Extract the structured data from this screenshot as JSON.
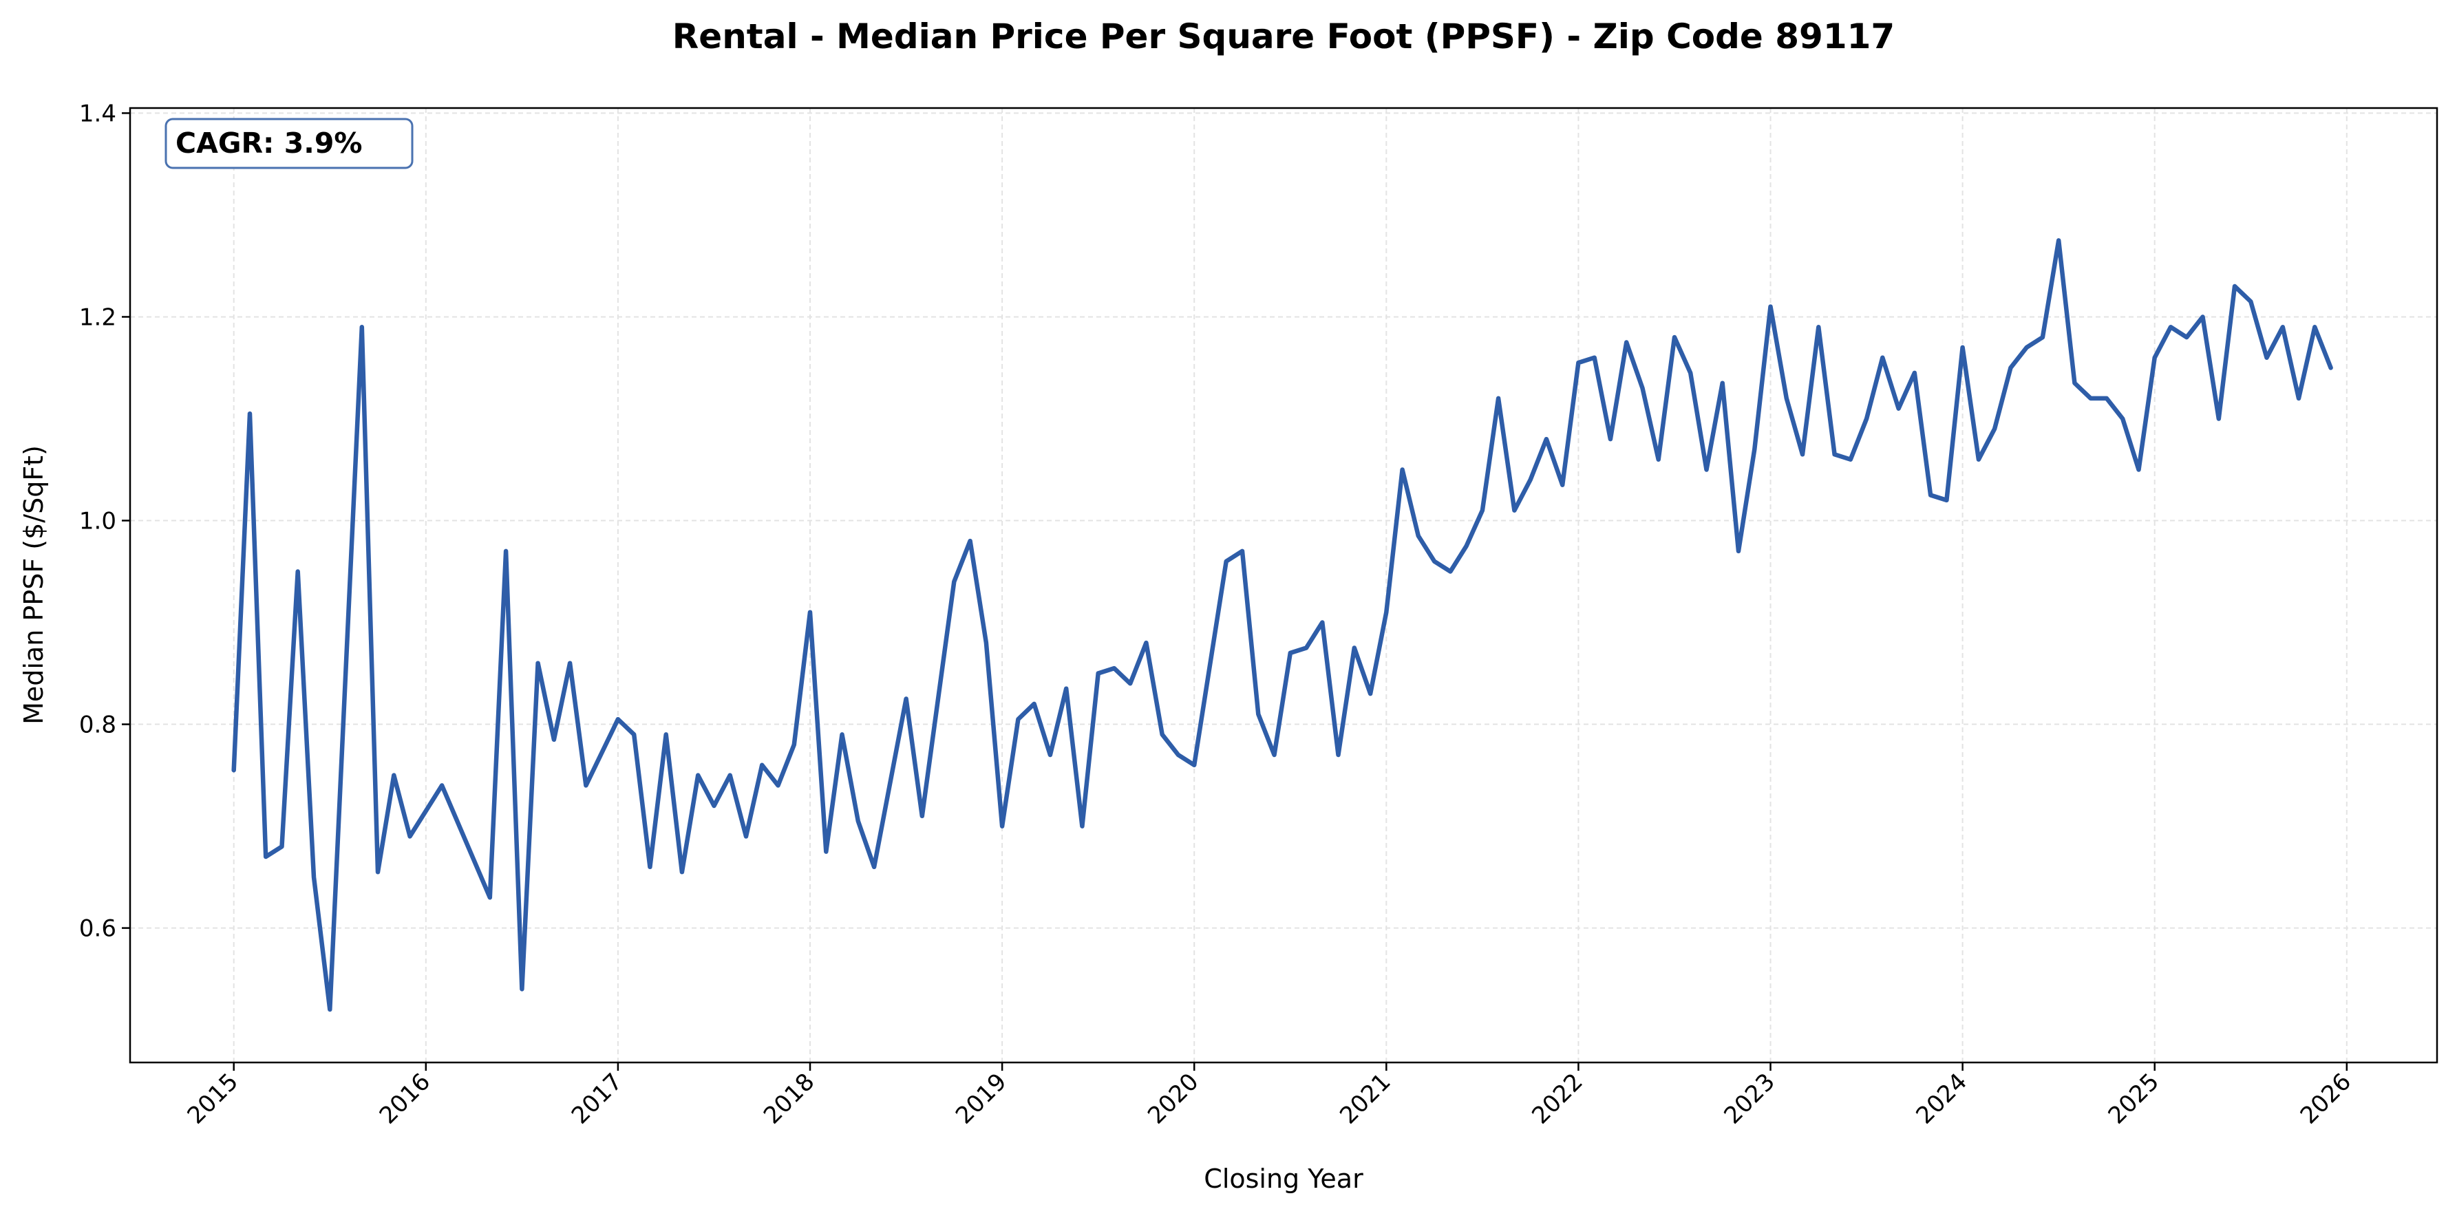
{
  "chart_data": {
    "type": "line",
    "title": "Rental - Median Price Per Square Foot (PPSF) - Zip Code 89117",
    "xlabel": "Closing Year",
    "ylabel": "Median PPSF ($/SqFt)",
    "annotation": "CAGR: 3.9%",
    "xlim": [
      2014.46,
      2026.47
    ],
    "ylim": [
      0.468,
      1.405
    ],
    "grid": true,
    "x_ticks": [
      "2015",
      "2016",
      "2017",
      "2018",
      "2019",
      "2020",
      "2021",
      "2022",
      "2023",
      "2024",
      "2025",
      "2026"
    ],
    "y_ticks": [
      "0.6",
      "0.8",
      "1.0",
      "1.2",
      "1.4"
    ],
    "line_color": "#2E5DA8",
    "series": [
      {
        "name": "Median PPSF",
        "x": [
          "2015-01",
          "2015-02",
          "2015-03",
          "2015-04",
          "2015-05",
          "2015-06",
          "2015-07",
          "2015-09",
          "2015-10",
          "2015-11",
          "2015-12",
          "2016-02",
          "2016-05",
          "2016-06",
          "2016-07",
          "2016-08",
          "2016-09",
          "2016-10",
          "2016-11",
          "2017-01",
          "2017-02",
          "2017-03",
          "2017-04",
          "2017-05",
          "2017-06",
          "2017-07",
          "2017-08",
          "2017-09",
          "2017-10",
          "2017-11",
          "2017-12",
          "2018-01",
          "2018-02",
          "2018-03",
          "2018-04",
          "2018-05",
          "2018-07",
          "2018-08",
          "2018-10",
          "2018-11",
          "2018-12",
          "2019-01",
          "2019-02",
          "2019-03",
          "2019-04",
          "2019-05",
          "2019-06",
          "2019-07",
          "2019-08",
          "2019-09",
          "2019-10",
          "2019-11",
          "2019-12",
          "2020-01",
          "2020-03",
          "2020-04",
          "2020-05",
          "2020-06",
          "2020-07",
          "2020-08",
          "2020-09",
          "2020-10",
          "2020-11",
          "2020-12",
          "2021-01",
          "2021-02",
          "2021-03",
          "2021-04",
          "2021-05",
          "2021-06",
          "2021-07",
          "2021-08",
          "2021-09",
          "2021-10",
          "2021-11",
          "2021-12",
          "2022-01",
          "2022-02",
          "2022-03",
          "2022-04",
          "2022-05",
          "2022-06",
          "2022-07",
          "2022-08",
          "2022-09",
          "2022-10",
          "2022-11",
          "2022-12",
          "2023-01",
          "2023-02",
          "2023-03",
          "2023-04",
          "2023-05",
          "2023-06",
          "2023-07",
          "2023-08",
          "2023-09",
          "2023-10",
          "2023-11",
          "2023-12",
          "2024-01",
          "2024-02",
          "2024-03",
          "2024-04",
          "2024-05",
          "2024-06",
          "2024-07",
          "2024-08",
          "2024-09",
          "2024-10",
          "2024-11",
          "2024-12",
          "2025-01",
          "2025-02",
          "2025-03",
          "2025-04",
          "2025-05",
          "2025-06",
          "2025-07",
          "2025-08",
          "2025-09",
          "2025-10",
          "2025-11",
          "2025-12"
        ],
        "values": [
          0.755,
          1.105,
          0.67,
          0.68,
          0.95,
          0.65,
          0.52,
          1.19,
          0.655,
          0.75,
          0.69,
          0.74,
          0.63,
          0.97,
          0.54,
          0.86,
          0.785,
          0.86,
          0.74,
          0.805,
          0.79,
          0.66,
          0.79,
          0.655,
          0.75,
          0.72,
          0.75,
          0.69,
          0.76,
          0.74,
          0.78,
          0.91,
          0.675,
          0.79,
          0.705,
          0.66,
          0.825,
          0.71,
          0.94,
          0.98,
          0.88,
          0.7,
          0.805,
          0.82,
          0.77,
          0.835,
          0.7,
          0.85,
          0.855,
          0.84,
          0.88,
          0.79,
          0.77,
          0.76,
          0.96,
          0.97,
          0.81,
          0.77,
          0.87,
          0.875,
          0.9,
          0.77,
          0.875,
          0.83,
          0.91,
          1.05,
          0.985,
          0.96,
          0.95,
          0.975,
          1.01,
          1.12,
          1.01,
          1.04,
          1.08,
          1.035,
          1.155,
          1.16,
          1.08,
          1.175,
          1.13,
          1.06,
          1.18,
          1.145,
          1.05,
          1.135,
          0.97,
          1.07,
          1.21,
          1.12,
          1.065,
          1.19,
          1.065,
          1.06,
          1.1,
          1.16,
          1.11,
          1.145,
          1.025,
          1.02,
          1.17,
          1.06,
          1.09,
          1.15,
          1.17,
          1.18,
          1.275,
          1.135,
          1.12,
          1.12,
          1.1,
          1.05,
          1.16,
          1.19,
          1.18,
          1.2,
          1.1,
          1.23,
          1.215,
          1.16,
          1.19,
          1.12,
          1.19,
          1.15
        ]
      }
    ]
  }
}
